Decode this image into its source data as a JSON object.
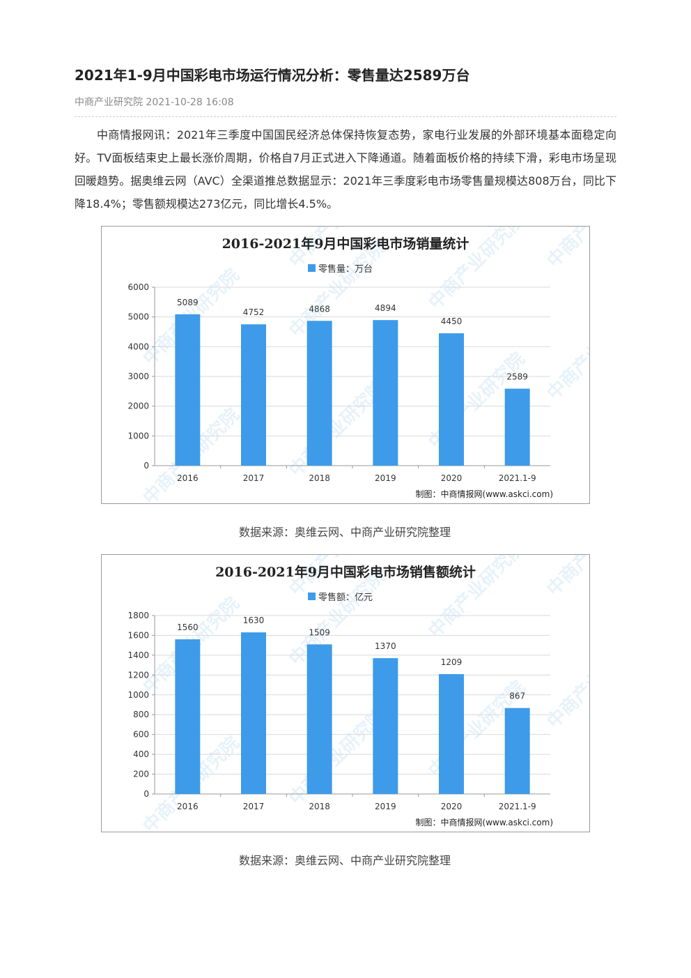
{
  "article": {
    "title": "2021年1-9月中国彩电市场运行情况分析：零售量达2589万台",
    "source": "中商产业研究院",
    "datetime": "2021-10-28 16:08",
    "paragraph": "中商情报网讯：2021年三季度中国国民经济总体保持恢复态势，家电行业发展的外部环境基本面稳定向好。TV面板结束史上最长涨价周期，价格自7月正式进入下降通道。随着面板价格的持续下滑，彩电市场呈现回暖趋势。据奥维云网（AVC）全渠道推总数据显示：2021年三季度彩电市场零售量规模达808万台，同比下降18.4%；零售额规模达273亿元，同比增长4.5%。"
  },
  "watermark_text": "中商产业研究院",
  "colors": {
    "bar": "#3d9be9",
    "grid": "#d9d9d9",
    "axis": "#999999"
  },
  "charts": [
    {
      "caption": "数据来源：奥维云网、中商产业研究院整理",
      "credit": "制图：中商情报网(www.askci.com)",
      "chart_data": {
        "type": "bar",
        "title": "2016-2021年9月中国彩电市场销量统计",
        "categories": [
          "2016",
          "2017",
          "2018",
          "2019",
          "2020",
          "2021.1-9"
        ],
        "series": [
          {
            "name": "零售量：万台",
            "values": [
              5089,
              4752,
              4868,
              4894,
              4450,
              2589
            ]
          }
        ],
        "ylim": [
          0,
          6000
        ],
        "yticks": [
          0,
          1000,
          2000,
          3000,
          4000,
          5000,
          6000
        ],
        "grid": true,
        "legend": "top-center"
      }
    },
    {
      "caption": "数据来源：奥维云网、中商产业研究院整理",
      "credit": "制图：中商情报网(www.askci.com)",
      "chart_data": {
        "type": "bar",
        "title": "2016-2021年9月中国彩电市场销售额统计",
        "categories": [
          "2016",
          "2017",
          "2018",
          "2019",
          "2020",
          "2021.1-9"
        ],
        "series": [
          {
            "name": "零售额：亿元",
            "values": [
              1560,
              1630,
              1509,
              1370,
              1209,
              867
            ]
          }
        ],
        "ylim": [
          0,
          1800
        ],
        "yticks": [
          0,
          200,
          400,
          600,
          800,
          1000,
          1200,
          1400,
          1600,
          1800
        ],
        "grid": true,
        "legend": "top-center"
      }
    }
  ]
}
